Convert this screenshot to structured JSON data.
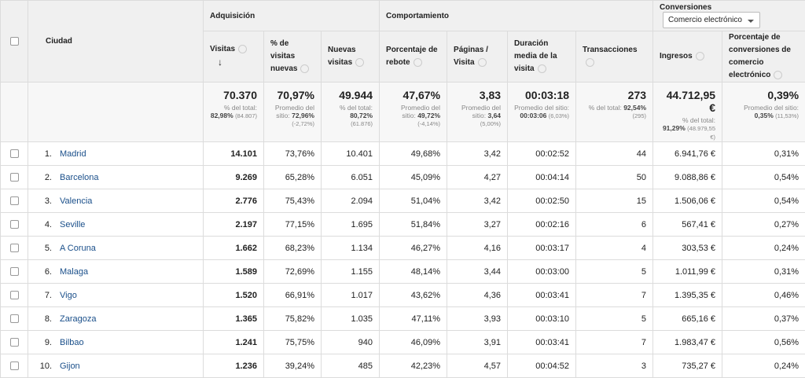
{
  "table": {
    "city_header": "Ciudad",
    "groups": [
      "Adquisición",
      "Comportamiento",
      "Conversiones"
    ],
    "conversion_dropdown": "Comercio electrónico",
    "columns": [
      "Visitas",
      "% de visitas nuevas",
      "Nuevas visitas",
      "Porcentaje de rebote",
      "Páginas / Visita",
      "Duración media de la visita",
      "Transacciones",
      "Ingresos",
      "Porcentaje de conversiones de comercio electrónico"
    ],
    "totals": [
      {
        "main": "70.370",
        "label": "% del total:",
        "strong": "82,98%",
        "paren": "(84.807)"
      },
      {
        "main": "70,97%",
        "label": "Promedio del sitio:",
        "strong": "72,96%",
        "paren": "(-2,72%)"
      },
      {
        "main": "49.944",
        "label": "% del total:",
        "strong": "80,72%",
        "paren": "(61.876)"
      },
      {
        "main": "47,67%",
        "label": "Promedio del sitio:",
        "strong": "49,72%",
        "paren": "(-4,14%)"
      },
      {
        "main": "3,83",
        "label": "Promedio del sitio:",
        "strong": "3,64",
        "paren": "(5,00%)"
      },
      {
        "main": "00:03:18",
        "label": "Promedio del sitio:",
        "strong": "00:03:06",
        "paren": "(6,03%)"
      },
      {
        "main": "273",
        "label": "% del total:",
        "strong": "92,54%",
        "paren": "(295)"
      },
      {
        "main": "44.712,95 €",
        "label": "% del total:",
        "strong": "91,29%",
        "paren": "(48.979,55 €)"
      },
      {
        "main": "0,39%",
        "label": "Promedio del sitio:",
        "strong": "0,35%",
        "paren": "(11,53%)"
      }
    ],
    "rows": [
      {
        "rank": "1.",
        "city": "Madrid",
        "values": [
          "14.101",
          "73,76%",
          "10.401",
          "49,68%",
          "3,42",
          "00:02:52",
          "44",
          "6.941,76 €",
          "0,31%"
        ]
      },
      {
        "rank": "2.",
        "city": "Barcelona",
        "values": [
          "9.269",
          "65,28%",
          "6.051",
          "45,09%",
          "4,27",
          "00:04:14",
          "50",
          "9.088,86 €",
          "0,54%"
        ]
      },
      {
        "rank": "3.",
        "city": "Valencia",
        "values": [
          "2.776",
          "75,43%",
          "2.094",
          "51,04%",
          "3,42",
          "00:02:50",
          "15",
          "1.506,06 €",
          "0,54%"
        ]
      },
      {
        "rank": "4.",
        "city": "Seville",
        "values": [
          "2.197",
          "77,15%",
          "1.695",
          "51,84%",
          "3,27",
          "00:02:16",
          "6",
          "567,41 €",
          "0,27%"
        ]
      },
      {
        "rank": "5.",
        "city": "A Coruna",
        "values": [
          "1.662",
          "68,23%",
          "1.134",
          "46,27%",
          "4,16",
          "00:03:17",
          "4",
          "303,53 €",
          "0,24%"
        ]
      },
      {
        "rank": "6.",
        "city": "Malaga",
        "values": [
          "1.589",
          "72,69%",
          "1.155",
          "48,14%",
          "3,44",
          "00:03:00",
          "5",
          "1.011,99 €",
          "0,31%"
        ]
      },
      {
        "rank": "7.",
        "city": "Vigo",
        "values": [
          "1.520",
          "66,91%",
          "1.017",
          "43,62%",
          "4,36",
          "00:03:41",
          "7",
          "1.395,35 €",
          "0,46%"
        ]
      },
      {
        "rank": "8.",
        "city": "Zaragoza",
        "values": [
          "1.365",
          "75,82%",
          "1.035",
          "47,11%",
          "3,93",
          "00:03:10",
          "5",
          "665,16 €",
          "0,37%"
        ]
      },
      {
        "rank": "9.",
        "city": "Bilbao",
        "values": [
          "1.241",
          "75,75%",
          "940",
          "46,09%",
          "3,91",
          "00:03:41",
          "7",
          "1.983,47 €",
          "0,56%"
        ]
      },
      {
        "rank": "10.",
        "city": "Gijon",
        "values": [
          "1.236",
          "39,24%",
          "485",
          "42,23%",
          "4,57",
          "00:04:52",
          "3",
          "735,27 €",
          "0,24%"
        ]
      }
    ]
  }
}
